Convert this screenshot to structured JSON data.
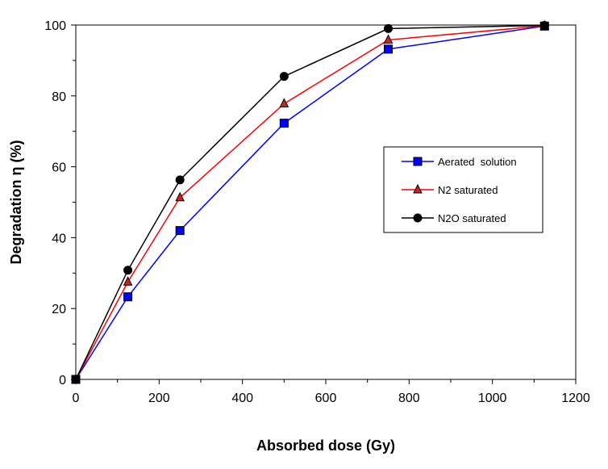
{
  "chart_data": {
    "type": "line",
    "xlabel": "Absorbed dose (Gy)",
    "ylabel": "Degradation η (%)",
    "xlim": [
      0,
      1200
    ],
    "ylim": [
      0,
      100
    ],
    "x_ticks": [
      0,
      200,
      400,
      600,
      800,
      1000,
      1200
    ],
    "y_ticks": [
      0,
      20,
      40,
      60,
      80,
      100
    ],
    "grid": false,
    "legend_position": "right",
    "series": [
      {
        "name": "Aerated  solution",
        "marker": "square",
        "line_color": "#0000ff",
        "marker_color": "#0000ff",
        "x": [
          0,
          125,
          250,
          500,
          750,
          1125
        ],
        "y": [
          0,
          23.3,
          42,
          72.3,
          93.2,
          99.7
        ]
      },
      {
        "name": "N2 saturated",
        "marker": "triangle",
        "line_color": "#ff0000",
        "marker_color": "#cc2222",
        "x": [
          0,
          125,
          250,
          500,
          750,
          1125
        ],
        "y": [
          0,
          27.5,
          51.3,
          77.8,
          95.8,
          99.8
        ]
      },
      {
        "name": "N2O saturated",
        "marker": "circle",
        "line_color": "#000000",
        "marker_color": "#000000",
        "x": [
          0,
          125,
          250,
          500,
          750,
          1125
        ],
        "y": [
          0,
          30.8,
          56.3,
          85.5,
          99.0,
          99.9
        ]
      }
    ]
  }
}
